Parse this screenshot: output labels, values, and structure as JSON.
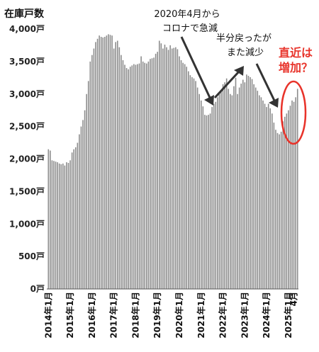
{
  "chart_data": {
    "type": "bar",
    "ylabel": "在庫戸数",
    "ylim": [
      0,
      4000
    ],
    "y_ticks": [
      {
        "value": 0,
        "label": "0戸"
      },
      {
        "value": 500,
        "label": "500戸"
      },
      {
        "value": 1000,
        "label": "1,000戸"
      },
      {
        "value": 1500,
        "label": "1,500戸"
      },
      {
        "value": 2000,
        "label": "2,000戸"
      },
      {
        "value": 2500,
        "label": "2,500戸"
      },
      {
        "value": 3000,
        "label": "3,000戸"
      },
      {
        "value": 3500,
        "label": "3,500戸"
      },
      {
        "value": 4000,
        "label": "4,000戸"
      }
    ],
    "grid": false,
    "x_ticks": [
      {
        "index": 0,
        "label": "2014年1月"
      },
      {
        "index": 12,
        "label": "2015年1月"
      },
      {
        "index": 24,
        "label": "2016年1月"
      },
      {
        "index": 36,
        "label": "2017年1月"
      },
      {
        "index": 48,
        "label": "2018年1月"
      },
      {
        "index": 60,
        "label": "2019年1月"
      },
      {
        "index": 72,
        "label": "2020年1月"
      },
      {
        "index": 84,
        "label": "2021年1月"
      },
      {
        "index": 96,
        "label": "2022年1月"
      },
      {
        "index": 108,
        "label": "2023年1月"
      },
      {
        "index": 120,
        "label": "2024年1月"
      },
      {
        "index": 132,
        "label": "2025年1月"
      },
      {
        "index": 135,
        "label": "4月"
      }
    ],
    "bar_color": "#8c8c8c",
    "values": [
      2150,
      2130,
      1980,
      1970,
      1960,
      1950,
      1930,
      1920,
      1930,
      1900,
      1950,
      1940,
      1980,
      2100,
      2150,
      2180,
      2250,
      2380,
      2500,
      2600,
      2750,
      3000,
      3200,
      3500,
      3600,
      3700,
      3800,
      3850,
      3900,
      3880,
      3870,
      3880,
      3900,
      3920,
      3910,
      3900,
      3700,
      3800,
      3820,
      3720,
      3600,
      3520,
      3450,
      3400,
      3380,
      3420,
      3440,
      3460,
      3450,
      3460,
      3470,
      3580,
      3500,
      3480,
      3470,
      3500,
      3540,
      3550,
      3560,
      3620,
      3650,
      3820,
      3780,
      3700,
      3760,
      3720,
      3680,
      3750,
      3700,
      3710,
      3720,
      3690,
      3580,
      3520,
      3480,
      3460,
      3420,
      3350,
      3290,
      3260,
      3240,
      3200,
      3100,
      3000,
      2900,
      2810,
      2680,
      2670,
      2680,
      2700,
      2800,
      2850,
      2880,
      2950,
      3000,
      3060,
      3150,
      3180,
      3240,
      3080,
      3000,
      2980,
      3120,
      3250,
      3000,
      3100,
      3160,
      3220,
      3180,
      3300,
      3280,
      3260,
      3230,
      3150,
      3100,
      3050,
      2980,
      2950,
      2900,
      2850,
      2800,
      2850,
      2780,
      2700,
      2560,
      2450,
      2400,
      2380,
      2420,
      2580,
      2650,
      2700,
      2750,
      2820,
      2900,
      2880,
      2950,
      3080
    ]
  },
  "annotations": {
    "covid_drop_l1": "2020年4月から",
    "covid_drop_l2": "コロナで急減",
    "half_recovery_l1": "半分戻ったが",
    "half_recovery_l2": "また減少",
    "recent_increase_l1": "直近は",
    "recent_increase_l2": "増加？",
    "annotation_color": "#e8332a",
    "arrow_color": "#333333"
  }
}
